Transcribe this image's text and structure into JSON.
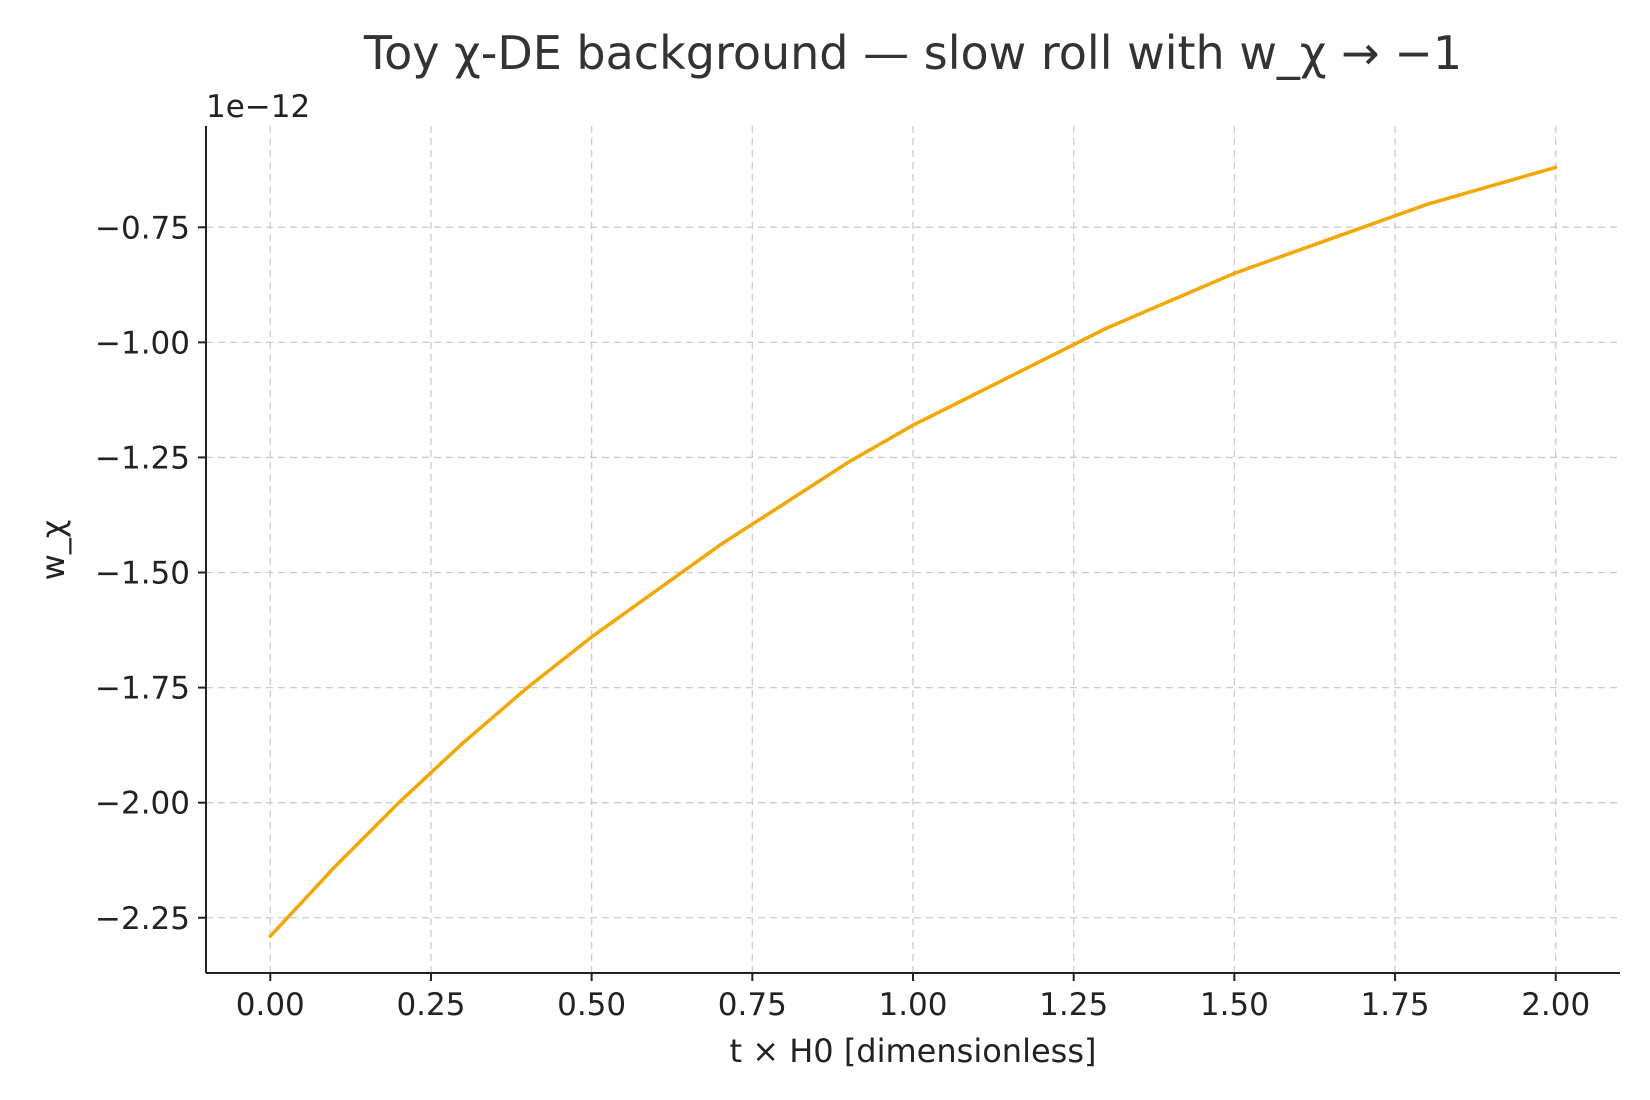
{
  "chart_data": {
    "type": "line",
    "title": "Toy χ-DE background — slow roll with w_χ → −1",
    "xlabel": "t × H0 [dimensionless]",
    "ylabel": "w_χ",
    "y_offset_label": "1e−12",
    "xlim": [
      -0.1,
      2.1
    ],
    "ylim": [
      -2.37,
      -0.53
    ],
    "xticks": [
      0.0,
      0.25,
      0.5,
      0.75,
      1.0,
      1.25,
      1.5,
      1.75,
      2.0
    ],
    "xtick_labels": [
      "0.00",
      "0.25",
      "0.50",
      "0.75",
      "1.00",
      "1.25",
      "1.50",
      "1.75",
      "2.00"
    ],
    "yticks": [
      -2.25,
      -2.0,
      -1.75,
      -1.5,
      -1.25,
      -1.0,
      -0.75
    ],
    "ytick_labels": [
      "−2.25",
      "−2.00",
      "−1.75",
      "−1.50",
      "−1.25",
      "−1.00",
      "−0.75"
    ],
    "grid": true,
    "series": [
      {
        "color": "#f5a700",
        "x": [
          0.0,
          0.1,
          0.2,
          0.3,
          0.4,
          0.5,
          0.6,
          0.7,
          0.8,
          0.9,
          1.0,
          1.1,
          1.2,
          1.3,
          1.4,
          1.5,
          1.6,
          1.7,
          1.8,
          1.9,
          2.0
        ],
        "y": [
          -2.29,
          -2.14,
          -2.0,
          -1.87,
          -1.75,
          -1.64,
          -1.54,
          -1.44,
          -1.35,
          -1.26,
          -1.18,
          -1.11,
          -1.04,
          -0.97,
          -0.91,
          -0.85,
          -0.8,
          -0.75,
          -0.7,
          -0.66,
          -0.62
        ]
      }
    ]
  }
}
